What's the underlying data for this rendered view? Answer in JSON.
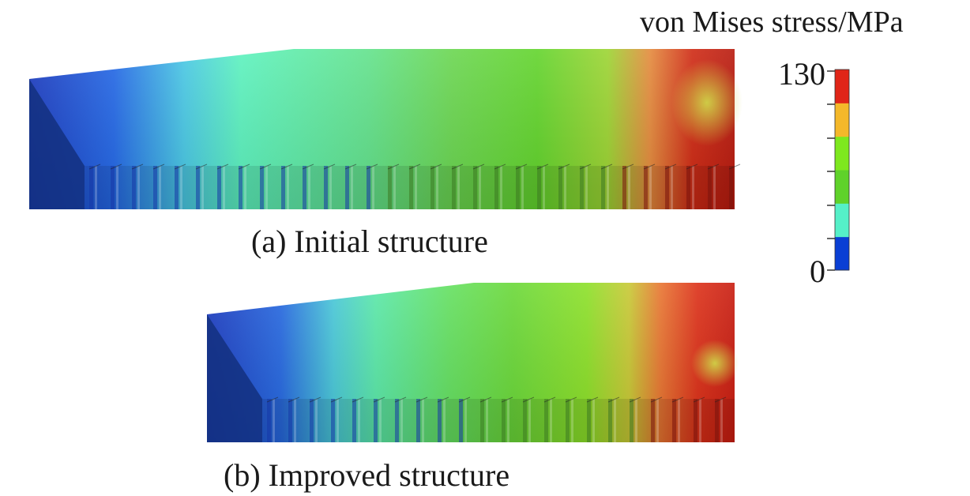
{
  "legend": {
    "title": "von Mises stress/MPa",
    "max_label": "130",
    "min_label": "0",
    "bands": [
      "#0a3fd4",
      "#55f0c8",
      "#5fd22a",
      "#7ee81e",
      "#f4b82a",
      "#e02518"
    ]
  },
  "panels": [
    {
      "caption": "(a) Initial structure"
    },
    {
      "caption": "(b) Improved structure"
    }
  ]
}
